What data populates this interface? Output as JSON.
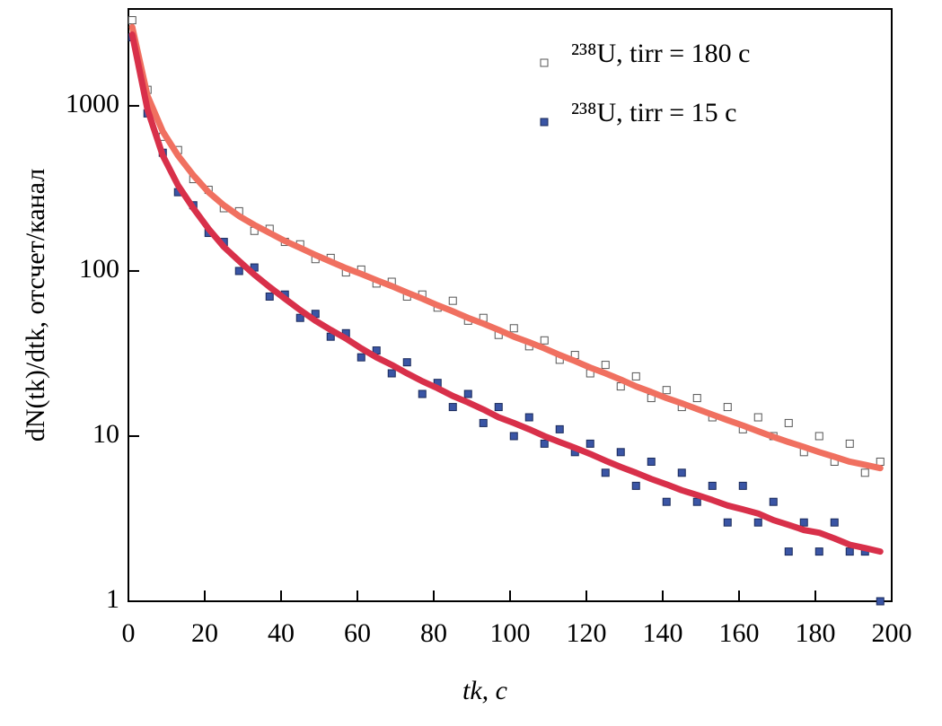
{
  "chart_data": {
    "type": "scatter",
    "x_label": "tk, c",
    "y_label": "dN(tk)/dtk, отсчет/канал",
    "xlim": [
      0,
      200
    ],
    "xticks": [
      0,
      20,
      40,
      60,
      80,
      100,
      120,
      140,
      160,
      180,
      200
    ],
    "ylim": [
      1,
      3860
    ],
    "yticks": [
      1,
      10,
      100,
      1000
    ],
    "y_scale": "log",
    "legend": "upper right",
    "x": [
      1,
      5,
      9,
      13,
      17,
      21,
      25,
      29,
      33,
      37,
      41,
      45,
      49,
      53,
      57,
      61,
      65,
      69,
      73,
      77,
      81,
      85,
      89,
      93,
      97,
      101,
      105,
      109,
      113,
      117,
      121,
      125,
      129,
      133,
      137,
      141,
      145,
      149,
      153,
      157,
      161,
      165,
      169,
      173,
      177,
      181,
      185,
      189,
      193,
      197
    ],
    "series": [
      {
        "name": "²³⁸U, tirr = 180 c",
        "type": "scatter",
        "color": "#ffffff",
        "edge": "#555555",
        "values": [
          3300,
          1250,
          650,
          540,
          360,
          310,
          240,
          230,
          175,
          180,
          150,
          145,
          118,
          120,
          98,
          102,
          84,
          86,
          70,
          72,
          60,
          66,
          50,
          52,
          41,
          45,
          35,
          38,
          29,
          31,
          24,
          27,
          20,
          23,
          17,
          19,
          15,
          17,
          13,
          15,
          11,
          13,
          10,
          12,
          8,
          10,
          7,
          9,
          6,
          7
        ]
      },
      {
        "name": "²³⁸U, tirr = 15 c",
        "type": "scatter",
        "color": "#3a55a5",
        "edge": "#1a2a5a",
        "values": [
          2600,
          900,
          520,
          300,
          250,
          170,
          150,
          100,
          105,
          70,
          72,
          52,
          55,
          40,
          42,
          30,
          33,
          24,
          28,
          18,
          21,
          15,
          18,
          12,
          15,
          10,
          13,
          9,
          11,
          8,
          9,
          6,
          8,
          5,
          7,
          4,
          6,
          4,
          5,
          3,
          5,
          3,
          4,
          2,
          3,
          2,
          3,
          2,
          2,
          1
        ]
      },
      {
        "type": "line",
        "color": "#f07060",
        "values": [
          3000,
          1150,
          700,
          500,
          380,
          300,
          250,
          215,
          190,
          170,
          152,
          138,
          125,
          114,
          104,
          96,
          88,
          81,
          74,
          68,
          62,
          57,
          52,
          48,
          44,
          40,
          37,
          34,
          31,
          28.5,
          26,
          24,
          22,
          20,
          18.5,
          17,
          15.8,
          14.6,
          13.5,
          12.5,
          11.6,
          10.7,
          9.9,
          9.2,
          8.6,
          8,
          7.5,
          7,
          6.7,
          6.4
        ]
      },
      {
        "type": "line",
        "color": "#d8304a",
        "values": [
          2700,
          950,
          500,
          330,
          240,
          180,
          140,
          115,
          95,
          80,
          68,
          58,
          50,
          44,
          39,
          34,
          30,
          27,
          24,
          21.5,
          19.5,
          17.5,
          16,
          14.5,
          13,
          12,
          11,
          10,
          9.2,
          8.5,
          7.8,
          7.1,
          6.5,
          6,
          5.5,
          5.1,
          4.7,
          4.4,
          4.1,
          3.8,
          3.6,
          3.4,
          3.1,
          2.9,
          2.7,
          2.6,
          2.4,
          2.2,
          2.1,
          2
        ]
      }
    ]
  }
}
